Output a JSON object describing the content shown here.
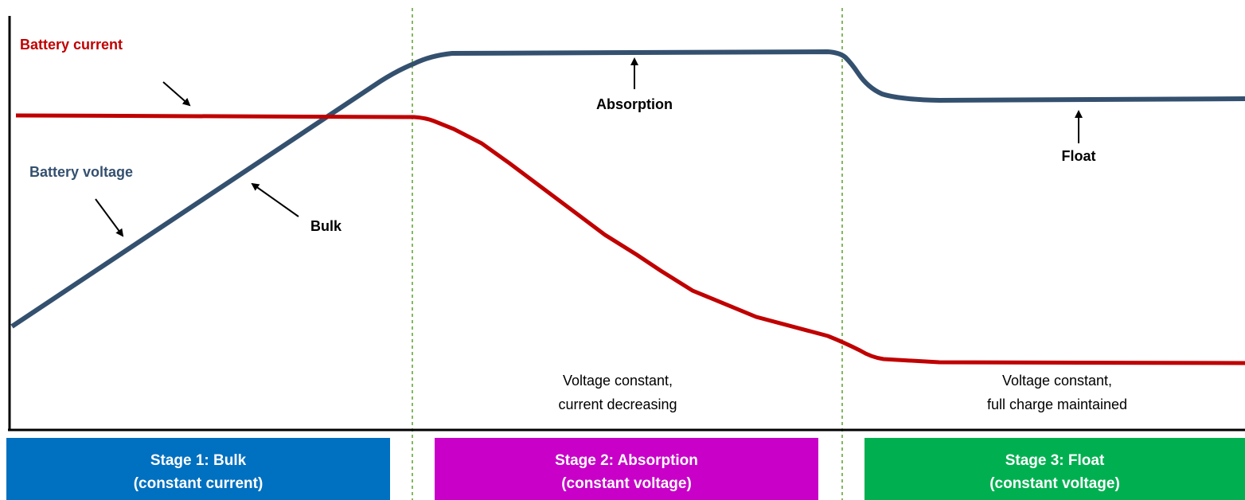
{
  "series_labels": {
    "current": "Battery current",
    "voltage": "Battery voltage"
  },
  "annotations": {
    "bulk": "Bulk",
    "absorption": "Absorption",
    "float": "Float"
  },
  "descriptions": [
    {
      "line1": "Voltage constant,",
      "line2": "current decreasing"
    },
    {
      "line1": "Voltage constant,",
      "line2": "full charge maintained"
    }
  ],
  "stages": [
    {
      "title": "Stage 1:  Bulk",
      "subtitle": "(constant current)"
    },
    {
      "title": "Stage 2:  Absorption",
      "subtitle": "(constant voltage)"
    },
    {
      "title": "Stage 3:  Float",
      "subtitle": "(constant voltage)"
    }
  ]
}
